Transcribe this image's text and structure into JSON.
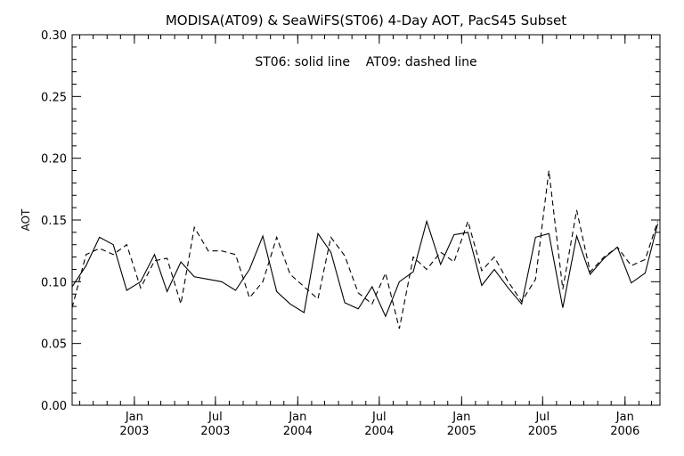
{
  "chart_data": {
    "type": "line",
    "title": "MODISA(AT09) & SeaWiFS(ST06) 4-Day AOT, PacS45 Subset",
    "annotation": "ST06: solid line    AT09: dashed line",
    "ylabel": "AOT",
    "xlabel": "",
    "ylim": [
      0.0,
      0.3
    ],
    "yticks": [
      0.0,
      0.05,
      0.1,
      0.15,
      0.2,
      0.25,
      0.3
    ],
    "ytick_labels": [
      "0.00",
      "0.05",
      "0.10",
      "0.15",
      "0.20",
      "0.25",
      "0.30"
    ],
    "xlim": [
      "2002-08-15",
      "2006-03-20"
    ],
    "xticks": [
      {
        "date": "2003-01-01",
        "label_top": "Jan",
        "label_bottom": "2003"
      },
      {
        "date": "2003-07-01",
        "label_top": "Jul",
        "label_bottom": "2003"
      },
      {
        "date": "2004-01-01",
        "label_top": "Jan",
        "label_bottom": "2004"
      },
      {
        "date": "2004-07-01",
        "label_top": "Jul",
        "label_bottom": "2004"
      },
      {
        "date": "2005-01-01",
        "label_top": "Jan",
        "label_bottom": "2005"
      },
      {
        "date": "2005-07-01",
        "label_top": "Jul",
        "label_bottom": "2005"
      },
      {
        "date": "2006-01-01",
        "label_top": "Jan",
        "label_bottom": "2006"
      }
    ],
    "grid": false,
    "legend": "none",
    "series": [
      {
        "style": "solid",
        "color": "#000000",
        "x": [
          "2002-08-15",
          "2002-09-15",
          "2002-10-15",
          "2002-11-15",
          "2002-12-15",
          "2003-01-15",
          "2003-02-15",
          "2003-03-15",
          "2003-04-15",
          "2003-05-15",
          "2003-06-15",
          "2003-07-15",
          "2003-08-15",
          "2003-09-15",
          "2003-10-15",
          "2003-11-15",
          "2003-12-15",
          "2004-01-15",
          "2004-02-15",
          "2004-03-15",
          "2004-04-15",
          "2004-05-15",
          "2004-06-15",
          "2004-07-15",
          "2004-08-15",
          "2004-09-15",
          "2004-10-15",
          "2004-11-15",
          "2004-12-15",
          "2005-01-15",
          "2005-02-15",
          "2005-03-15",
          "2005-04-15",
          "2005-05-15",
          "2005-06-15",
          "2005-07-15",
          "2005-08-15",
          "2005-09-15",
          "2005-10-15",
          "2005-11-15",
          "2005-12-15",
          "2006-01-15",
          "2006-02-15",
          "2006-03-15"
        ],
        "values": [
          0.096,
          0.113,
          0.136,
          0.13,
          0.093,
          0.1,
          0.122,
          0.092,
          0.116,
          0.104,
          0.102,
          0.1,
          0.093,
          0.11,
          0.137,
          0.092,
          0.082,
          0.075,
          0.139,
          0.124,
          0.083,
          0.078,
          0.096,
          0.072,
          0.1,
          0.108,
          0.149,
          0.114,
          0.138,
          0.14,
          0.097,
          0.11,
          0.095,
          0.082,
          0.136,
          0.139,
          0.079,
          0.137,
          0.106,
          0.119,
          0.128,
          0.099,
          0.107,
          0.147
        ]
      },
      {
        "style": "dashed",
        "color": "#000000",
        "x": [
          "2002-08-15",
          "2002-09-15",
          "2002-10-15",
          "2002-11-15",
          "2002-12-15",
          "2003-01-15",
          "2003-02-15",
          "2003-03-15",
          "2003-04-15",
          "2003-05-15",
          "2003-06-15",
          "2003-07-15",
          "2003-08-15",
          "2003-09-15",
          "2003-10-15",
          "2003-11-15",
          "2003-12-15",
          "2004-01-15",
          "2004-02-15",
          "2004-03-15",
          "2004-04-15",
          "2004-05-15",
          "2004-06-15",
          "2004-07-15",
          "2004-08-15",
          "2004-09-15",
          "2004-10-15",
          "2004-11-15",
          "2004-12-15",
          "2005-01-15",
          "2005-02-15",
          "2005-03-15",
          "2005-04-15",
          "2005-05-15",
          "2005-06-15",
          "2005-07-15",
          "2005-08-15",
          "2005-09-15",
          "2005-10-15",
          "2005-11-15",
          "2005-12-15",
          "2006-01-15",
          "2006-02-15",
          "2006-03-15"
        ],
        "values": [
          0.079,
          0.122,
          0.127,
          0.122,
          0.13,
          0.095,
          0.117,
          0.119,
          0.082,
          0.144,
          0.125,
          0.125,
          0.122,
          0.087,
          0.1,
          0.136,
          0.106,
          0.096,
          0.086,
          0.136,
          0.121,
          0.091,
          0.082,
          0.107,
          0.062,
          0.12,
          0.11,
          0.124,
          0.116,
          0.149,
          0.109,
          0.12,
          0.1,
          0.084,
          0.102,
          0.19,
          0.094,
          0.158,
          0.108,
          0.12,
          0.128,
          0.113,
          0.118,
          0.149
        ]
      }
    ]
  }
}
